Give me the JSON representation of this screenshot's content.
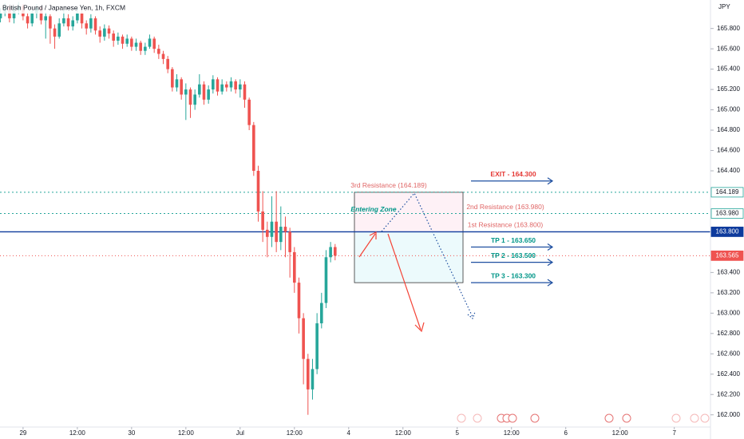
{
  "chart_data": {
    "type": "candlestick",
    "title": "British Pound / Japanese Yen, 1h, FXCM",
    "y_axis_label": "JPY",
    "up_color": "#26a69a",
    "down_color": "#ef5350",
    "grid": false,
    "open": [
      165.9,
      165.95,
      166.0,
      165.9,
      165.98,
      166.02,
      165.92,
      165.85,
      165.95,
      166.0,
      165.88,
      165.92,
      165.8,
      165.72,
      165.85,
      165.9,
      165.82,
      165.88,
      165.95,
      165.85,
      165.8,
      165.9,
      165.78,
      165.72,
      165.8,
      165.75,
      165.68,
      165.72,
      165.65,
      165.7,
      165.62,
      165.66,
      165.58,
      165.62,
      165.7,
      165.6,
      165.55,
      165.5,
      165.4,
      165.22,
      165.3,
      165.15,
      165.2,
      165.05,
      165.15,
      165.25,
      165.1,
      165.2,
      165.3,
      165.18,
      165.25,
      165.22,
      165.28,
      165.2,
      165.25,
      165.1,
      164.85,
      164.4,
      164.0,
      163.82,
      163.75,
      163.9,
      163.7,
      163.85,
      163.8,
      163.6,
      163.3,
      162.95,
      162.55,
      162.25,
      162.45,
      162.9,
      163.1,
      163.55,
      163.65
    ],
    "high": [
      166.0,
      166.05,
      166.03,
      166.02,
      166.06,
      166.04,
      165.95,
      165.98,
      166.04,
      166.02,
      165.96,
      165.94,
      165.84,
      165.9,
      165.98,
      165.94,
      165.92,
      166.0,
      165.97,
      165.88,
      165.94,
      165.92,
      165.82,
      165.84,
      165.83,
      165.78,
      165.76,
      165.74,
      165.74,
      165.72,
      165.7,
      165.68,
      165.66,
      165.74,
      165.72,
      165.64,
      165.58,
      165.53,
      165.42,
      165.35,
      165.32,
      165.26,
      165.22,
      165.2,
      165.35,
      165.28,
      165.24,
      165.34,
      165.32,
      165.3,
      165.28,
      165.32,
      165.3,
      165.3,
      165.28,
      165.12,
      164.88,
      164.45,
      164.2,
      163.9,
      164.15,
      164.2,
      164.05,
      163.95,
      163.84,
      163.65,
      163.35,
      163.0,
      162.6,
      162.55,
      163.0,
      163.2,
      163.62,
      163.7,
      163.68
    ],
    "low": [
      165.86,
      165.92,
      165.86,
      165.85,
      165.94,
      165.88,
      165.8,
      165.82,
      165.9,
      165.84,
      165.7,
      165.65,
      165.6,
      165.7,
      165.82,
      165.78,
      165.78,
      165.85,
      165.8,
      165.74,
      165.76,
      165.74,
      165.66,
      165.68,
      165.7,
      165.62,
      165.64,
      165.6,
      165.62,
      165.58,
      165.58,
      165.54,
      165.54,
      165.6,
      165.56,
      165.5,
      165.45,
      165.36,
      165.18,
      165.18,
      165.1,
      164.9,
      164.92,
      165.0,
      165.12,
      165.05,
      165.06,
      165.16,
      165.14,
      165.15,
      165.18,
      165.18,
      165.16,
      165.12,
      165.02,
      164.8,
      164.35,
      163.9,
      163.7,
      163.55,
      163.65,
      163.6,
      163.62,
      163.55,
      163.35,
      163.2,
      162.8,
      162.3,
      162.0,
      162.15,
      162.4,
      162.85,
      163.05,
      163.5,
      163.52
    ],
    "close": [
      165.95,
      166.0,
      165.9,
      165.98,
      166.02,
      165.92,
      165.85,
      165.95,
      166.0,
      165.88,
      165.92,
      165.8,
      165.72,
      165.85,
      165.9,
      165.82,
      165.88,
      165.95,
      165.85,
      165.8,
      165.9,
      165.78,
      165.72,
      165.8,
      165.75,
      165.68,
      165.72,
      165.65,
      165.7,
      165.62,
      165.66,
      165.58,
      165.62,
      165.7,
      165.6,
      165.55,
      165.5,
      165.4,
      165.22,
      165.3,
      165.15,
      165.2,
      165.05,
      165.15,
      165.25,
      165.1,
      165.2,
      165.3,
      165.18,
      165.25,
      165.22,
      165.28,
      165.2,
      165.25,
      165.1,
      164.85,
      164.4,
      164.0,
      163.82,
      163.75,
      163.9,
      163.7,
      163.85,
      163.8,
      163.6,
      163.3,
      162.95,
      162.55,
      162.25,
      162.45,
      162.9,
      163.1,
      163.55,
      163.65,
      163.565
    ],
    "xlim": [
      -0.1,
      157
    ],
    "xticks": [
      {
        "value": 5,
        "label": "29"
      },
      {
        "value": 17,
        "label": "12:00"
      },
      {
        "value": 29,
        "label": "30"
      },
      {
        "value": 41,
        "label": "12:00"
      },
      {
        "value": 53,
        "label": "Jul"
      },
      {
        "value": 65,
        "label": "12:00"
      },
      {
        "value": 77,
        "label": "4"
      },
      {
        "value": 89,
        "label": "12:00"
      },
      {
        "value": 101,
        "label": "5"
      },
      {
        "value": 113,
        "label": "12:00"
      },
      {
        "value": 125,
        "label": "6"
      },
      {
        "value": 137,
        "label": "12:00"
      },
      {
        "value": 149,
        "label": "7"
      }
    ],
    "ylim": [
      161.88,
      166.08
    ],
    "yticks": [
      {
        "value": 162.0,
        "label": "162.000"
      },
      {
        "value": 162.2,
        "label": "162.200"
      },
      {
        "value": 162.4,
        "label": "162.400"
      },
      {
        "value": 162.6,
        "label": "162.600"
      },
      {
        "value": 162.8,
        "label": "162.800"
      },
      {
        "value": 163.0,
        "label": "163.000"
      },
      {
        "value": 163.2,
        "label": "163.200"
      },
      {
        "value": 163.4,
        "label": "163.400"
      },
      {
        "value": 164.4,
        "label": "164.400"
      },
      {
        "value": 164.6,
        "label": "164.600"
      },
      {
        "value": 164.8,
        "label": "164.800"
      },
      {
        "value": 165.0,
        "label": "165.000"
      },
      {
        "value": 165.2,
        "label": "165.200"
      },
      {
        "value": 165.4,
        "label": "165.400"
      },
      {
        "value": 165.6,
        "label": "165.600"
      },
      {
        "value": 165.8,
        "label": "165.800"
      }
    ],
    "levels": [
      {
        "value": 164.189,
        "label": "164.189",
        "color": "#26a69a",
        "dash": "2 3",
        "box": "#ffffff",
        "text_color": "#131722"
      },
      {
        "value": 163.98,
        "label": "163.980",
        "color": "#26a69a",
        "dash": "2 3",
        "box": "#ffffff",
        "text_color": "#131722"
      },
      {
        "value": 163.8,
        "label": "163.800",
        "color": "#0d3a9c",
        "dash": "",
        "box": "#0d3a9c",
        "text_color": "#ffffff"
      },
      {
        "value": 163.565,
        "label": "163.565",
        "color": "#ef5350",
        "dash": "1 3",
        "box": "#ef5350",
        "text_color": "#ffffff"
      }
    ],
    "resistances": [
      {
        "text": "3rd Resistance (164.189)",
        "value": 164.189
      },
      {
        "text": "2nd Resistance (163.980)",
        "value": 163.98
      },
      {
        "text": "1st Resistance (163.800)",
        "value": 163.8
      }
    ],
    "targets": [
      {
        "text": "EXIT - 164.300",
        "value": 164.3,
        "color": "#e53935"
      },
      {
        "text": "TP 1 - 163.650",
        "value": 163.65,
        "color": "#009688"
      },
      {
        "text": "TP 2 - 163.500",
        "value": 163.5,
        "color": "#009688"
      },
      {
        "text": "TP 3 - 163.300",
        "value": 163.3,
        "color": "#009688"
      }
    ],
    "zone": {
      "label": "Entering Zone",
      "top": 164.189,
      "mid": 163.8,
      "bottom": 163.3
    }
  }
}
